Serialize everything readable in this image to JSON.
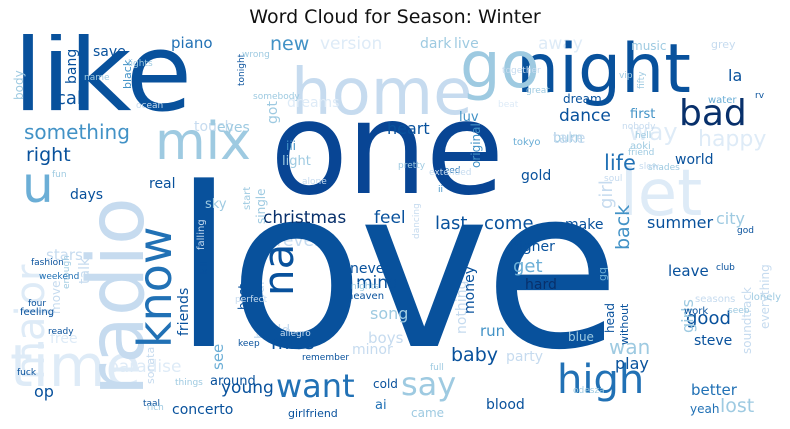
{
  "title": "Word Cloud for Season: Winter",
  "palette": {
    "darkest": "#08306b",
    "dark": "#08519c",
    "mid_dark": "#2171b5",
    "mid": "#4292c6",
    "mid_light": "#6baed6",
    "light": "#9ecae1",
    "lighter": "#c6dbef",
    "faint": "#deebf7",
    "background": "#ffffff"
  },
  "words": [
    {
      "text": "love",
      "color": "#08519c"
    },
    {
      "text": "one",
      "color": "#084594"
    },
    {
      "text": "like",
      "color": "#08519c"
    },
    {
      "text": "night",
      "color": "#08519c"
    },
    {
      "text": "home",
      "color": "#c6dbef"
    },
    {
      "text": "go",
      "color": "#9ecae1"
    },
    {
      "text": "bad",
      "color": "#08306b"
    },
    {
      "text": "mix",
      "color": "#9ecae1"
    },
    {
      "text": "u",
      "color": "#6baed6"
    },
    {
      "text": "let",
      "color": "#deebf7"
    },
    {
      "text": "radio",
      "color": "#c6dbef"
    },
    {
      "text": "know",
      "color": "#2171b5"
    },
    {
      "text": "time",
      "color": "#deebf7"
    },
    {
      "text": "major",
      "color": "#deebf7"
    },
    {
      "text": "na",
      "color": "#08519c"
    },
    {
      "text": "want",
      "color": "#2171b5"
    },
    {
      "text": "say",
      "color": "#9ecae1"
    },
    {
      "text": "high",
      "color": "#2171b5"
    },
    {
      "text": "christmas",
      "color": "#08306b"
    },
    {
      "text": "feel",
      "color": "#08519c"
    },
    {
      "text": "last",
      "color": "#08519c"
    },
    {
      "text": "come",
      "color": "#08519c"
    },
    {
      "text": "back",
      "color": "#4292c6"
    },
    {
      "text": "summer",
      "color": "#08519c"
    },
    {
      "text": "city",
      "color": "#9ecae1"
    },
    {
      "text": "something",
      "color": "#4292c6"
    },
    {
      "text": "right",
      "color": "#08519c"
    },
    {
      "text": "heart",
      "color": "#08519c"
    },
    {
      "text": "call",
      "color": "#08519c"
    },
    {
      "text": "dance",
      "color": "#08519c"
    },
    {
      "text": "life",
      "color": "#2171b5"
    },
    {
      "text": "girl",
      "color": "#c6dbef"
    },
    {
      "text": "world",
      "color": "#08519c"
    },
    {
      "text": "gold",
      "color": "#08519c"
    },
    {
      "text": "make",
      "color": "#08519c"
    },
    {
      "text": "leave",
      "color": "#08519c"
    },
    {
      "text": "good",
      "color": "#08519c"
    },
    {
      "text": "wan",
      "color": "#9ecae1"
    },
    {
      "text": "baby",
      "color": "#08519c"
    },
    {
      "text": "miss",
      "color": "#08519c"
    },
    {
      "text": "young",
      "color": "#08519c"
    },
    {
      "text": "concerto",
      "color": "#08519c"
    },
    {
      "text": "better",
      "color": "#2171b5"
    },
    {
      "text": "lost",
      "color": "#9ecae1"
    },
    {
      "text": "blood",
      "color": "#08519c"
    },
    {
      "text": "yeah",
      "color": "#2171b5"
    },
    {
      "text": "play",
      "color": "#08519c"
    },
    {
      "text": "steve",
      "color": "#08519c"
    },
    {
      "text": "get",
      "color": "#6baed6"
    },
    {
      "text": "mind",
      "color": "#08519c"
    },
    {
      "text": "never",
      "color": "#08519c"
    },
    {
      "text": "hard",
      "color": "#08306b"
    },
    {
      "text": "song",
      "color": "#9ecae1"
    },
    {
      "text": "boys",
      "color": "#c6dbef"
    },
    {
      "text": "run",
      "color": "#4292c6"
    },
    {
      "text": "money",
      "color": "#08519c"
    },
    {
      "text": "nothing",
      "color": "#c6dbef"
    },
    {
      "text": "higher",
      "color": "#08519c"
    },
    {
      "text": "friends",
      "color": "#08519c"
    },
    {
      "text": "forever",
      "color": "#c6dbef"
    },
    {
      "text": "sky",
      "color": "#9ecae1"
    },
    {
      "text": "real",
      "color": "#08519c"
    },
    {
      "text": "days",
      "color": "#08519c"
    },
    {
      "text": "stars",
      "color": "#c6dbef"
    },
    {
      "text": "op",
      "color": "#08519c"
    },
    {
      "text": "around",
      "color": "#08519c"
    },
    {
      "text": "ai",
      "color": "#2171b5"
    },
    {
      "text": "cold",
      "color": "#08519c"
    },
    {
      "text": "came",
      "color": "#9ecae1"
    },
    {
      "text": "girlfriend",
      "color": "#08519c"
    },
    {
      "text": "party",
      "color": "#c6dbef"
    },
    {
      "text": "paradise",
      "color": "#deebf7"
    },
    {
      "text": "minor",
      "color": "#c6dbef"
    },
    {
      "text": "piano",
      "color": "#2171b5"
    },
    {
      "text": "new",
      "color": "#4292c6"
    },
    {
      "text": "version",
      "color": "#deebf7"
    },
    {
      "text": "dark",
      "color": "#9ecae1"
    },
    {
      "text": "live",
      "color": "#9ecae1"
    },
    {
      "text": "away",
      "color": "#deebf7"
    },
    {
      "text": "music",
      "color": "#9ecae1"
    },
    {
      "text": "grey",
      "color": "#c6dbef"
    },
    {
      "text": "save",
      "color": "#08519c"
    },
    {
      "text": "bang",
      "color": "#08519c"
    },
    {
      "text": "black",
      "color": "#4292c6"
    },
    {
      "text": "body",
      "color": "#9ecae1"
    },
    {
      "text": "dreams",
      "color": "#deebf7"
    },
    {
      "text": "burn",
      "color": "#9ecae1"
    },
    {
      "text": "dream",
      "color": "#08519c"
    },
    {
      "text": "first",
      "color": "#4292c6"
    },
    {
      "text": "la",
      "color": "#08519c"
    },
    {
      "text": "take",
      "color": "#c6dbef"
    },
    {
      "text": "way",
      "color": "#deebf7"
    },
    {
      "text": "happy",
      "color": "#deebf7"
    },
    {
      "text": "luv",
      "color": "#4292c6"
    },
    {
      "text": "touch",
      "color": "#c6dbef"
    },
    {
      "text": "eyes",
      "color": "#9ecae1"
    },
    {
      "text": "got",
      "color": "#9ecae1"
    },
    {
      "text": "light",
      "color": "#9ecae1"
    },
    {
      "text": "iii",
      "color": "#4292c6"
    },
    {
      "text": "best",
      "color": "#08519c"
    },
    {
      "text": "original",
      "color": "#4292c6"
    },
    {
      "text": "aoki",
      "color": "#9ecae1"
    },
    {
      "text": "tokyo",
      "color": "#6baed6"
    },
    {
      "text": "water",
      "color": "#6baed6"
    },
    {
      "text": "head",
      "color": "#08519c"
    },
    {
      "text": "without",
      "color": "#08519c"
    },
    {
      "text": "girls",
      "color": "#9ecae1"
    },
    {
      "text": "hold",
      "color": "#c6dbef"
    },
    {
      "text": "beautiful",
      "color": "#c6dbef"
    },
    {
      "text": "talk",
      "color": "#c6dbef"
    },
    {
      "text": "move",
      "color": "#c6dbef"
    },
    {
      "text": "free",
      "color": "#deebf7"
    },
    {
      "text": "soundtrack",
      "color": "#c6dbef"
    },
    {
      "text": "everything",
      "color": "#c6dbef"
    },
    {
      "text": "lonely",
      "color": "#9ecae1"
    },
    {
      "text": "seasons",
      "color": "#c6dbef"
    },
    {
      "text": "work",
      "color": "#08519c"
    },
    {
      "text": "gq",
      "color": "#6baed6"
    },
    {
      "text": "blue",
      "color": "#9ecae1"
    },
    {
      "text": "odesza",
      "color": "#9ecae1"
    },
    {
      "text": "sonata",
      "color": "#c6dbef"
    },
    {
      "text": "feeling",
      "color": "#08519c"
    },
    {
      "text": "fashion",
      "color": "#08519c"
    },
    {
      "text": "falling",
      "color": "#c6dbef"
    },
    {
      "text": "weekend",
      "color": "#2171b5"
    },
    {
      "text": "kill",
      "color": "#08519c"
    },
    {
      "text": "enough",
      "color": "#9ecae1"
    },
    {
      "text": "four",
      "color": "#08519c"
    },
    {
      "text": "ready",
      "color": "#08519c"
    },
    {
      "text": "fuck",
      "color": "#08519c"
    },
    {
      "text": "taal",
      "color": "#08519c"
    },
    {
      "text": "rich",
      "color": "#9ecae1"
    },
    {
      "text": "things",
      "color": "#9ecae1"
    },
    {
      "text": "keep",
      "color": "#08519c"
    },
    {
      "text": "remember",
      "color": "#08519c"
    },
    {
      "text": "full",
      "color": "#9ecae1"
    },
    {
      "text": "club",
      "color": "#08519c"
    },
    {
      "text": "god",
      "color": "#08519c"
    },
    {
      "text": "seeb",
      "color": "#9ecae1"
    },
    {
      "text": "fifty",
      "color": "#9ecae1"
    },
    {
      "text": "vip",
      "color": "#9ecae1"
    },
    {
      "text": "rv",
      "color": "#08519c"
    },
    {
      "text": "nobody",
      "color": "#c6dbef"
    },
    {
      "text": "slow",
      "color": "#c6dbef"
    },
    {
      "text": "soul",
      "color": "#c6dbef"
    },
    {
      "text": "hell",
      "color": "#9ecae1"
    },
    {
      "text": "shades",
      "color": "#9ecae1"
    },
    {
      "text": "friend",
      "color": "#9ecae1"
    },
    {
      "text": "pretty",
      "color": "#9ecae1"
    },
    {
      "text": "alone",
      "color": "#c6dbef"
    },
    {
      "text": "extended",
      "color": "#c6dbef"
    },
    {
      "text": "need",
      "color": "#2171b5"
    },
    {
      "text": "ii",
      "color": "#4292c6"
    },
    {
      "text": "start",
      "color": "#9ecae1"
    },
    {
      "text": "single",
      "color": "#9ecae1"
    },
    {
      "text": "perfect",
      "color": "#c6dbef"
    },
    {
      "text": "allegro",
      "color": "#c6dbef"
    },
    {
      "text": "nights",
      "color": "#9ecae1"
    },
    {
      "text": "heaven",
      "color": "#08519c"
    },
    {
      "text": "see",
      "color": "#6baed6"
    },
    {
      "text": "fun",
      "color": "#9ecae1"
    },
    {
      "text": "name",
      "color": "#9ecae1"
    },
    {
      "text": "lights",
      "color": "#9ecae1"
    },
    {
      "text": "tonight",
      "color": "#08519c"
    },
    {
      "text": "somebody",
      "color": "#9ecae1"
    },
    {
      "text": "wrong",
      "color": "#9ecae1"
    },
    {
      "text": "ocean",
      "color": "#c6dbef"
    },
    {
      "text": "great",
      "color": "#9ecae1"
    },
    {
      "text": "together",
      "color": "#c6dbef"
    },
    {
      "text": "beat",
      "color": "#deebf7"
    },
    {
      "text": "dancing",
      "color": "#c6dbef"
    }
  ]
}
